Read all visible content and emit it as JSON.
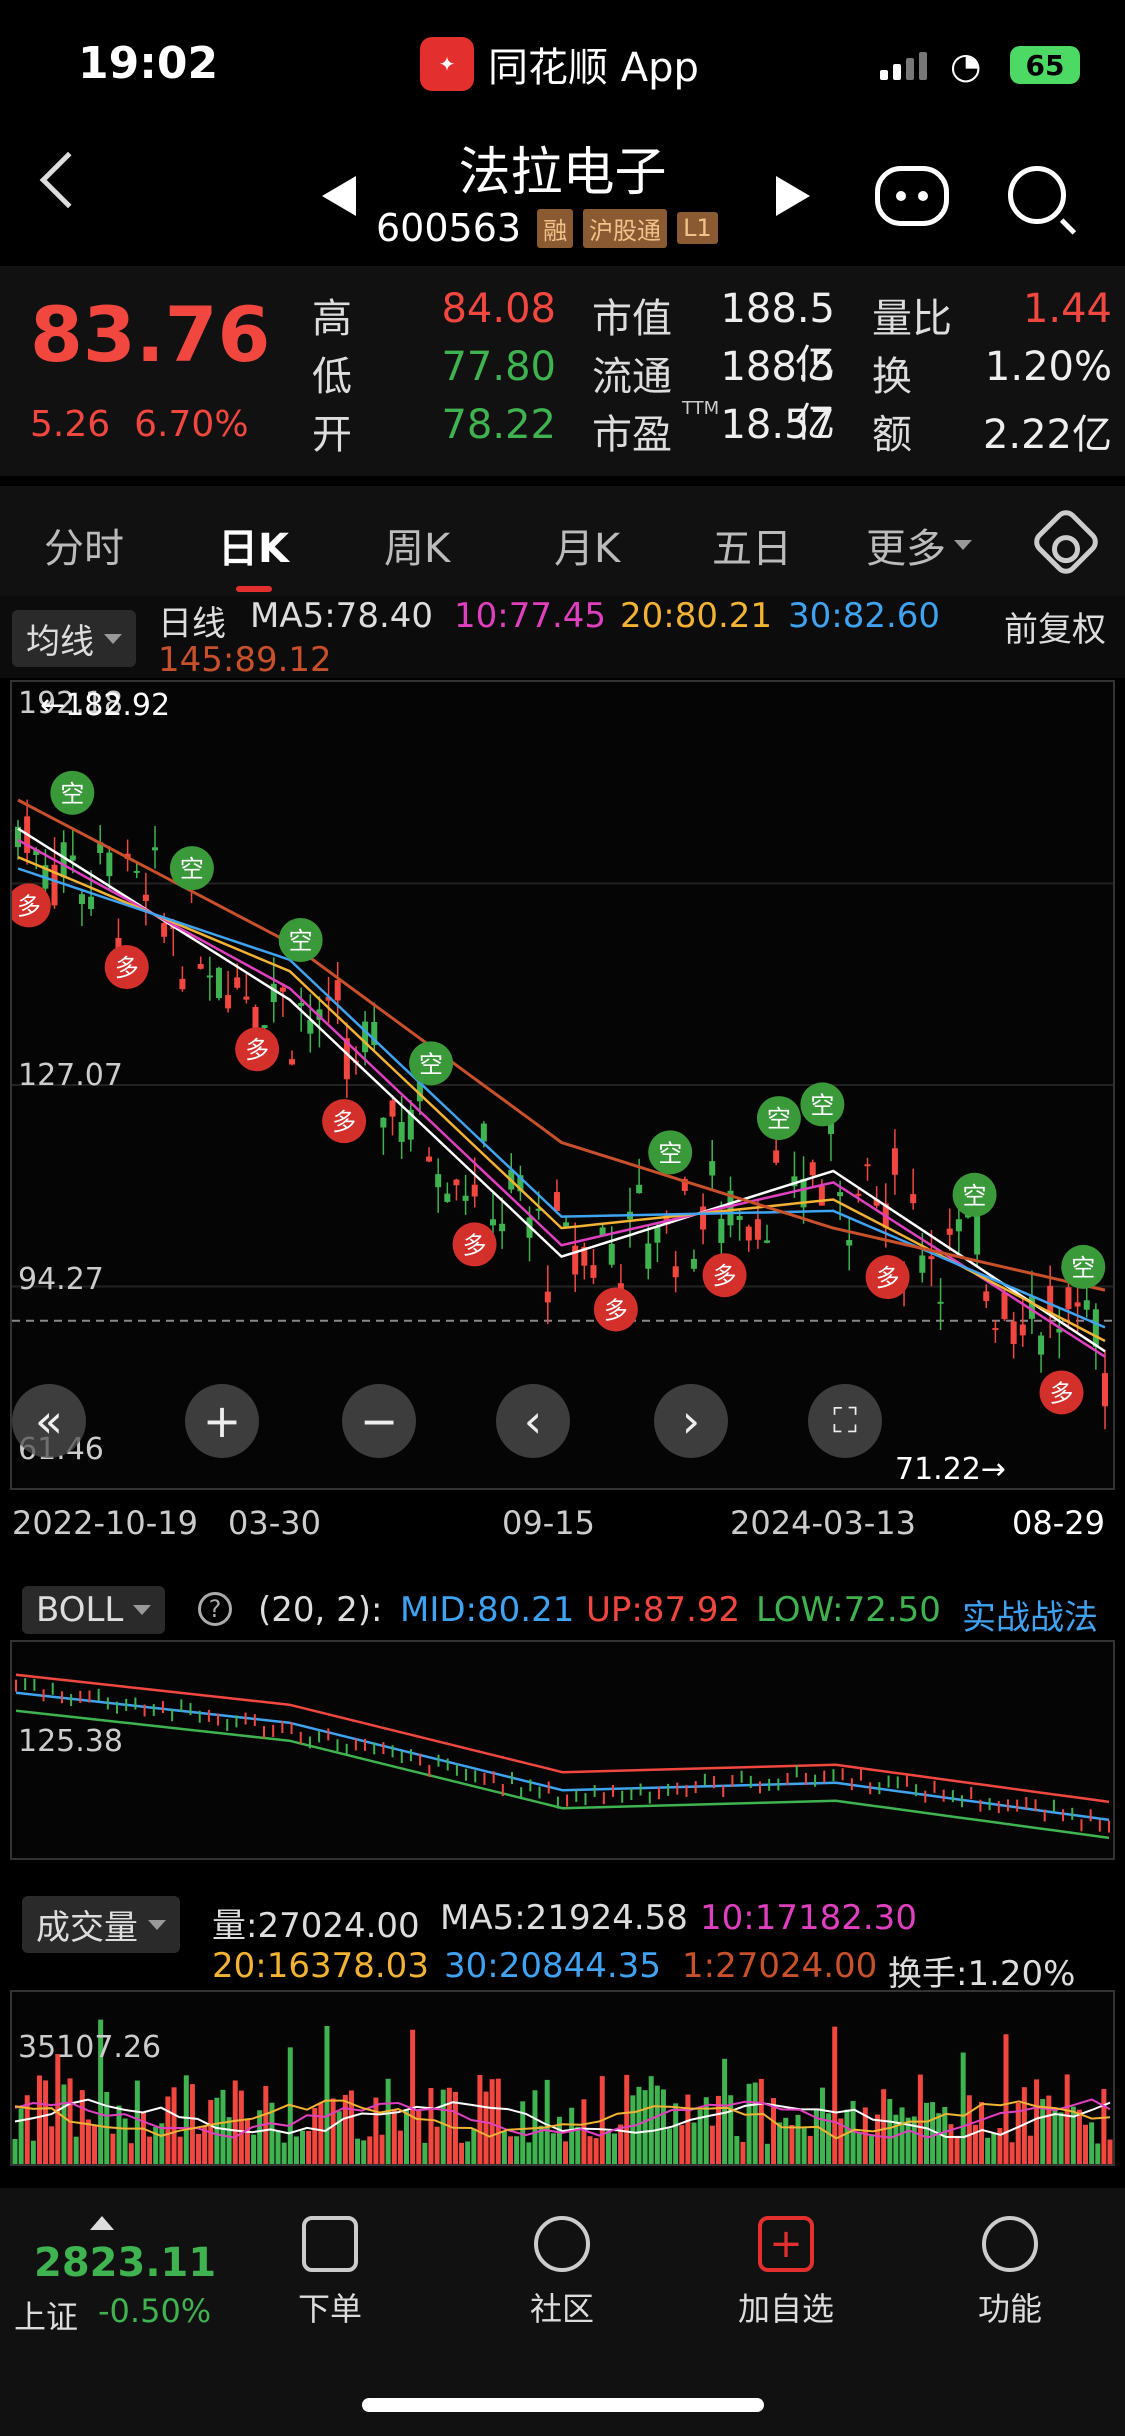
{
  "status": {
    "time": "19:02",
    "app_name": "同花顺 App",
    "battery": "65"
  },
  "header": {
    "stock_name": "法拉电子",
    "stock_code": "600563",
    "tags": [
      "融",
      "沪股通",
      "L1"
    ]
  },
  "quote": {
    "price": "83.76",
    "change": "5.26",
    "change_pct": "6.70%",
    "high_label": "高",
    "high": "84.08",
    "low_label": "低",
    "low": "77.80",
    "open_label": "开",
    "open": "78.22",
    "mcap_label": "市值",
    "mcap": "188.5亿",
    "float_label": "流通",
    "float": "188.5亿",
    "pe_label": "市盈",
    "pe_sup": "TTM",
    "pe": "18.57",
    "vr_label": "量比",
    "vr": "1.44",
    "turn_label": "换",
    "turn": "1.20%",
    "amt_label": "额",
    "amt": "2.22亿"
  },
  "tabs": [
    "分时",
    "日K",
    "周K",
    "月K",
    "五日",
    "更多"
  ],
  "ma_row": {
    "selector": "均线",
    "period": "日线",
    "ma5": "MA5:78.40",
    "ma10": "10:77.45",
    "ma20": "20:80.21",
    "ma30": "30:82.60",
    "ma145": "145:89.12",
    "adjust": "前复权"
  },
  "colors": {
    "ma5": "#ffffff",
    "ma10": "#e040c0",
    "ma20": "#f2b233",
    "ma30": "#3fa3f2",
    "ma145": "#c8502a",
    "up": "#f2473f",
    "down": "#3fb34f"
  },
  "kline": {
    "y_labels": [
      "192.18",
      "127.07",
      "94.27",
      "61.46"
    ],
    "high_marker": "←182.92",
    "low_marker": "71.22→",
    "dates": [
      "2022-10-19",
      "03-30",
      "09-15",
      "2024-03-13",
      "08-29"
    ],
    "signal_buy": "多",
    "signal_sell": "空"
  },
  "boll": {
    "selector": "BOLL",
    "params": "(20, 2):",
    "mid": "MID:80.21",
    "up": "UP:87.92",
    "low": "LOW:72.50",
    "link": "实战战法",
    "y_label": "125.38"
  },
  "volume": {
    "selector": "成交量",
    "vol": "量:27024.00",
    "ma5": "MA5:21924.58",
    "ma10": "10:17182.30",
    "ma20": "20:16378.03",
    "ma30": "30:20844.35",
    "ma1": "1:27024.00",
    "turnover": "换手:1.20%",
    "y_label": "35107.26"
  },
  "bottom_nav": {
    "index_value": "2823.11",
    "index_name": "上证",
    "index_change": "-0.50%",
    "items": [
      "下单",
      "社区",
      "加自选",
      "功能"
    ]
  },
  "chart_data": {
    "type": "line",
    "x": [
      "2022-10-19",
      "03-30",
      "09-15",
      "2024-03-13",
      "08-29"
    ],
    "series": [
      {
        "name": "MA5",
        "values": [
          170,
          140,
          95,
          110,
          78.4
        ]
      },
      {
        "name": "10",
        "values": [
          168,
          142,
          97,
          108,
          77.45
        ]
      },
      {
        "name": "20",
        "values": [
          165,
          145,
          100,
          105,
          80.21
        ]
      },
      {
        "name": "30",
        "values": [
          163,
          147,
          102,
          103,
          82.6
        ]
      },
      {
        "name": "145",
        "values": [
          175,
          150,
          115,
          100,
          89.12
        ]
      }
    ],
    "ylim": [
      61.46,
      192.18
    ]
  }
}
